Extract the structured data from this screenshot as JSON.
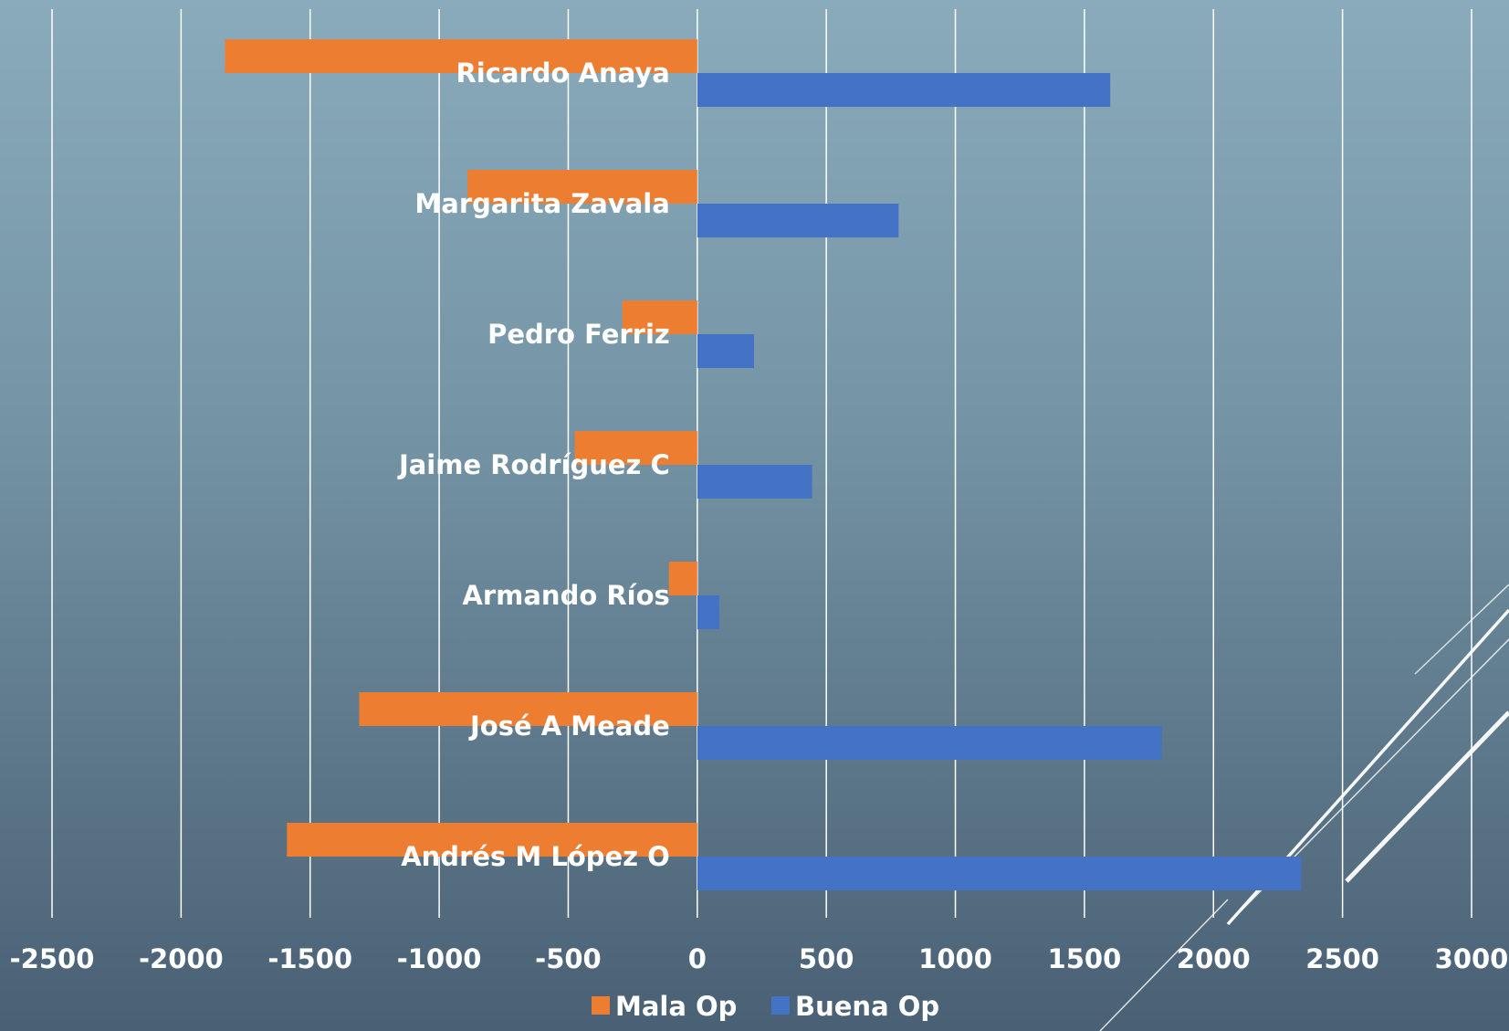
{
  "chart_data": {
    "type": "bar",
    "orientation": "horizontal",
    "title": "",
    "xlabel": "",
    "ylabel": "",
    "categories": [
      "Ricardo Anaya",
      "Margarita Zavala",
      "Pedro Ferriz",
      "Jaime Rodríguez C",
      "Armando Ríos",
      "José A Meade",
      "Andrés M López O"
    ],
    "series": [
      {
        "name": "Mala Op",
        "color": "#ed7d31",
        "values": [
          -1830,
          -890,
          -290,
          -475,
          -110,
          -1310,
          -1590
        ]
      },
      {
        "name": "Buena Op",
        "color": "#4472c4",
        "values": [
          1600,
          780,
          220,
          445,
          85,
          1800,
          2340
        ]
      }
    ],
    "xlim": [
      -2500,
      3000
    ],
    "xticks": [
      "-2500",
      "-2000",
      "-1500",
      "-1000",
      "-500",
      "0",
      "500",
      "1000",
      "1500",
      "2000",
      "2500",
      "3000"
    ],
    "grid": true,
    "legend": "bottom"
  },
  "theme": {
    "gridline_color": "#ffffff",
    "text_color": "#ffffff"
  }
}
